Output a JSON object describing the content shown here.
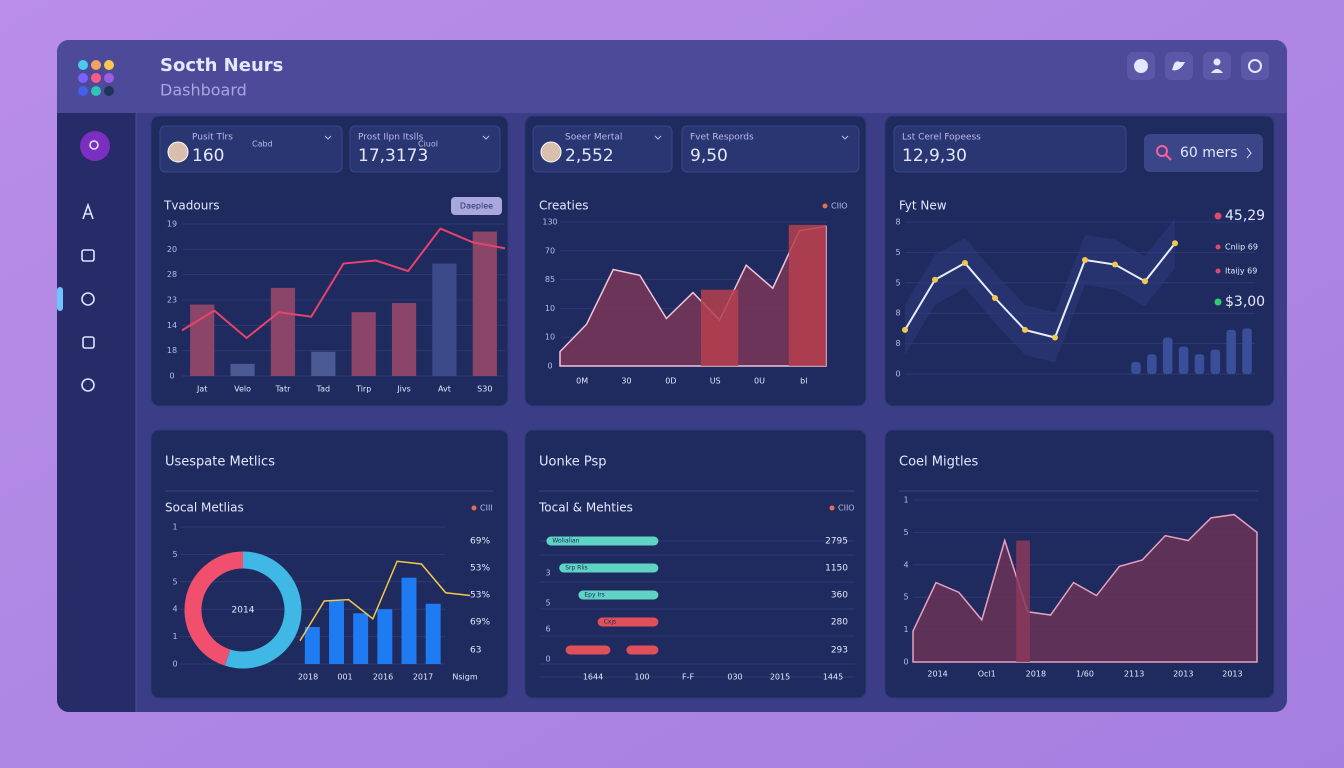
{
  "header": {
    "title": "Socth Neurs",
    "subtitle": "Dashboard"
  },
  "panels": [
    {
      "cards": [
        {
          "label": "Pusit Tlrs",
          "value": "160",
          "note": "Cabd"
        },
        {
          "label": "Prost Ilpn Itslls",
          "value": "17,3173",
          "note": "Ciuol"
        }
      ],
      "chart": {
        "type": "bar-line",
        "title": "Tvadours",
        "button": "Daeplee",
        "ylabels": [
          "19",
          "20",
          "28",
          "23",
          "14",
          "18",
          "0"
        ],
        "xlabels": [
          "Jat",
          "Velo",
          "Tatr",
          "Tad",
          "Tirp",
          "Jivs",
          "Avt",
          "S30"
        ],
        "ylim": [
          0,
          100
        ],
        "bars": [
          47,
          8,
          58,
          16,
          42,
          48,
          74,
          95
        ],
        "bar_colors": [
          "#8a4569",
          "#4b5a92",
          "#8a4569",
          "#4b5a92",
          "#8a4569",
          "#8a4569",
          "#3c4a8a",
          "#8a4569"
        ],
        "line": [
          30,
          43,
          25,
          42,
          39,
          74,
          76,
          69,
          97,
          88,
          84
        ],
        "line_color": "#e8436e"
      }
    },
    {
      "cards": [
        {
          "label": "Soeer Mertal",
          "value": "2,552"
        },
        {
          "label": "Fvet Respords",
          "value": "9,50"
        }
      ],
      "chart": {
        "type": "area",
        "title": "Creaties",
        "legend": "CIIO",
        "legend_color": "#e0704a",
        "ylabels": [
          "130",
          "70",
          "85",
          "10",
          "10",
          "0"
        ],
        "xlabels": [
          "0M",
          "30",
          "0D",
          "US",
          "0U",
          "bl"
        ],
        "ylim": [
          0,
          100
        ],
        "xlim": [
          0,
          100
        ],
        "values": [
          10,
          29,
          67,
          63,
          33,
          51,
          32,
          70,
          54,
          94,
          97
        ],
        "line_color": "#f0c4d8",
        "fill": "#7a3658",
        "bars": [
          {
            "x0": 53,
            "x1": 67,
            "value": 53
          },
          {
            "x0": 86,
            "x1": 100,
            "value": 98
          }
        ],
        "bar_color": "#b5404e"
      }
    },
    {
      "cards": [
        {
          "label": "Lst Cerel Fopeess",
          "value": "12,9,30"
        }
      ],
      "button": "60 mers",
      "chart": {
        "type": "line-points",
        "title": "Fyt New",
        "ylabels": [
          "8",
          "5",
          "5",
          "8",
          "8",
          "0"
        ],
        "ylim": [
          0,
          100
        ],
        "values": [
          29,
          62,
          73,
          50,
          29,
          24,
          75,
          72,
          61,
          86
        ],
        "line_color": "#e8ecff",
        "point_color": "#f2c94c",
        "bars": [
          8,
          13,
          24,
          18,
          13,
          16,
          29,
          30
        ],
        "bar_color": "#3a4f9a",
        "legend": [
          {
            "label": "45,29",
            "color": "#e04a6a"
          },
          {
            "label": "Cnlip 69",
            "color": "#e04a6a"
          },
          {
            "label": "Itaijy 69",
            "color": "#e04a6a"
          },
          {
            "label": "$3,00",
            "color": "#2ecc71"
          }
        ]
      }
    },
    {
      "title": "Usespate Metlics",
      "chart": {
        "type": "donut-bars",
        "title": "Socal Metlias",
        "legend": "CIII",
        "legend_color": "#e0704a",
        "ylabels": [
          "1",
          "5",
          "5",
          "4",
          "1",
          "0"
        ],
        "xlabels": [
          "2018",
          "001",
          "2016",
          "2017",
          "Nsigm"
        ],
        "right_labels": [
          "69%",
          "53%",
          "53%",
          "69%",
          "63"
        ],
        "center_label": "2014",
        "donut": [
          45,
          55
        ],
        "donut_colors": [
          "#f0506e",
          "#3fb8e6"
        ],
        "ylim": [
          0,
          100
        ],
        "bars": [
          27,
          46,
          37,
          40,
          63,
          44
        ],
        "bar_color": "#1e7bf2",
        "line": [
          17,
          46,
          47,
          33,
          75,
          73,
          52,
          50
        ],
        "line_color": "#f2c94c"
      }
    },
    {
      "title": "Uonke Psp",
      "chart": {
        "type": "hbar",
        "title": "Tocal & Mehties",
        "legend": "CIIO",
        "legend_color": "#e0704a",
        "ylabels": [
          "3",
          "5",
          "6",
          "0"
        ],
        "xlabels": [
          "1644",
          "100",
          "F-F",
          "030",
          "2015",
          "1445"
        ],
        "xlim": [
          0,
          100
        ],
        "bars": [
          {
            "label": "Wolialian",
            "segments": [
              [
                2,
                37
              ]
            ],
            "color": "#5fd3c4"
          },
          {
            "label": "Srp Rlis",
            "segments": [
              [
                6,
                37
              ]
            ],
            "color": "#5fd3c4"
          },
          {
            "label": "Epy Irs",
            "segments": [
              [
                12,
                37
              ]
            ],
            "color": "#5fd3c4"
          },
          {
            "label": "Cxjs",
            "segments": [
              [
                18,
                37
              ]
            ],
            "color": "#e0505a"
          },
          {
            "segments": [
              [
                8,
                22
              ],
              [
                27,
                37
              ]
            ],
            "color": "#e0505a"
          }
        ],
        "right_labels": [
          "2795",
          "1150",
          "360",
          "280",
          "293"
        ]
      }
    },
    {
      "title": "Coel Migtles",
      "chart": {
        "type": "area",
        "ylabels": [
          "1",
          "5",
          "4",
          "5",
          "1",
          "0"
        ],
        "xlabels": [
          "2014",
          "Ocl1",
          "2018",
          "1/60",
          "2113",
          "2013",
          "2013"
        ],
        "ylim": [
          0,
          100
        ],
        "xlim": [
          0,
          100
        ],
        "values": [
          19,
          49,
          43,
          26,
          75,
          31,
          29,
          49,
          41,
          59,
          63,
          78,
          75,
          89,
          91,
          80
        ],
        "line_color": "#e8a0c0",
        "fill": "#6a3258",
        "bars": [
          {
            "x0": 30,
            "x1": 34,
            "value": 75
          }
        ],
        "bar_color": "#8a3a5a"
      }
    }
  ]
}
